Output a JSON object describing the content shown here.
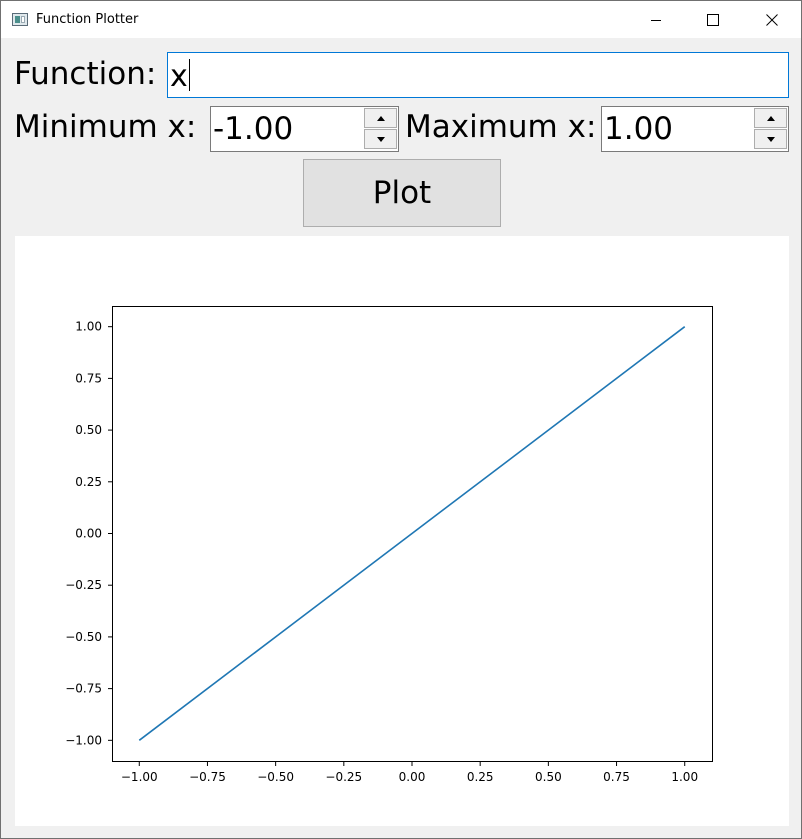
{
  "window": {
    "title": "Function Plotter",
    "controls": {
      "minimize": "minimize-icon",
      "maximize": "maximize-icon",
      "close": "close-icon"
    }
  },
  "form": {
    "function_label": "Function:",
    "function_value": "x",
    "min_label": "Minimum x:",
    "min_value": "-1.00",
    "max_label": "Maximum x:",
    "max_value": "1.00",
    "plot_label": "Plot"
  },
  "chart_data": {
    "type": "line",
    "title": "",
    "xlabel": "",
    "ylabel": "",
    "xlim": [
      -1.1,
      1.1
    ],
    "ylim": [
      -1.1,
      1.1
    ],
    "grid": false,
    "x_ticks": [
      -1.0,
      -0.75,
      -0.5,
      -0.25,
      0.0,
      0.25,
      0.5,
      0.75,
      1.0
    ],
    "x_tick_labels": [
      "−1.00",
      "−0.75",
      "−0.50",
      "−0.25",
      "0.00",
      "0.25",
      "0.50",
      "0.75",
      "1.00"
    ],
    "y_ticks": [
      -1.0,
      -0.75,
      -0.5,
      -0.25,
      0.0,
      0.25,
      0.5,
      0.75,
      1.0
    ],
    "y_tick_labels": [
      "−1.00",
      "−0.75",
      "−0.50",
      "−0.25",
      "0.00",
      "0.25",
      "0.50",
      "0.75",
      "1.00"
    ],
    "series": [
      {
        "name": "x",
        "color": "#1f77b4",
        "x": [
          -1.0,
          1.0
        ],
        "y": [
          -1.0,
          1.0
        ]
      }
    ]
  }
}
